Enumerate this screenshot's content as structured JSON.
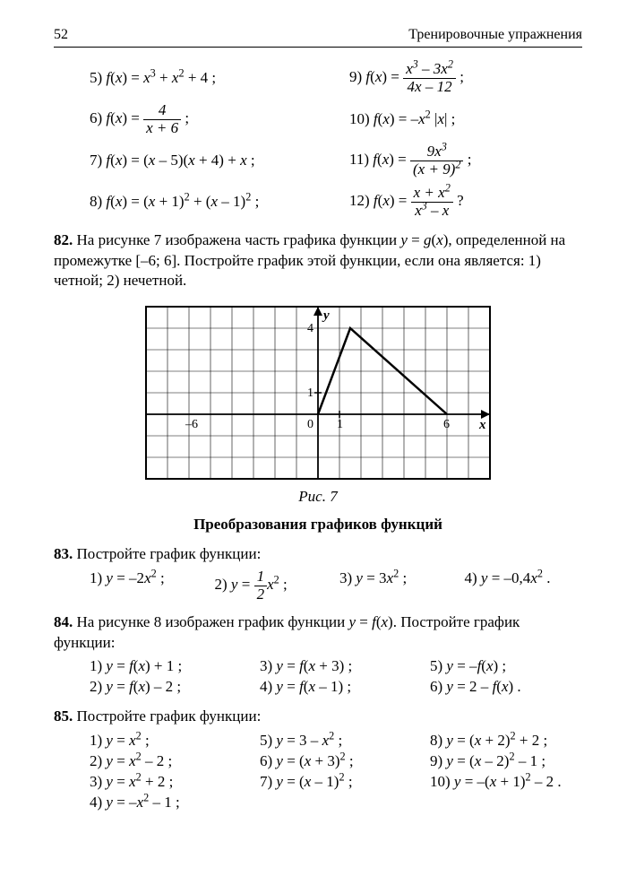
{
  "page": {
    "number": "52",
    "section": "Тренировочные упражнения"
  },
  "graph": {
    "xmin": -8,
    "xmax": 8,
    "ymin": -3,
    "ymax": 5,
    "grid_color": "#000000",
    "cell": 24,
    "axis_labels": {
      "x": "x",
      "y": "y"
    },
    "tick_labels": {
      "-6": -6,
      "0": 0,
      "1": 1,
      "6": 6,
      "4": 4
    },
    "curve_points": [
      [
        0,
        0
      ],
      [
        1.5,
        4
      ],
      [
        6,
        0
      ]
    ],
    "line_width": 2
  },
  "text": {
    "p82": "На рисунке 7 изображена часть графика функции ",
    "p82b": ", определенной на промежутке [–6; 6]. Постройте график этой функции, если она является: 1) четной; 2) нечетной.",
    "caption7": "Рис. 7",
    "section2": "Преобразования графиков функций",
    "p83": "Постройте график функции:",
    "p84": "На рисунке 8 изображен график функции ",
    "p84b": ". Постройте график функции:",
    "p85": "Постройте график функции:"
  },
  "eq": {
    "e5a": "5) ",
    "e5b": " + 4 ;",
    "e6a": "6) ",
    "e6b": " ;",
    "e7a": "7) ",
    "e8a": "8) ",
    "e9a": "9) ",
    "e9b": " ;",
    "e10a": "10) ",
    "e11a": "11) ",
    "e11b": " ;",
    "e12a": "12) ",
    "e12b": " ?",
    "p82": "82.",
    "p83": "83.",
    "p84": "84.",
    "p85": "85.",
    "n1": "1) ",
    "n2": "2) ",
    "n3": "3) ",
    "n4": "4) ",
    "n5": "5) ",
    "n6": "6) ",
    "n7": "7) ",
    "n8": "8) ",
    "n9": "9) ",
    "n10": "10)"
  }
}
